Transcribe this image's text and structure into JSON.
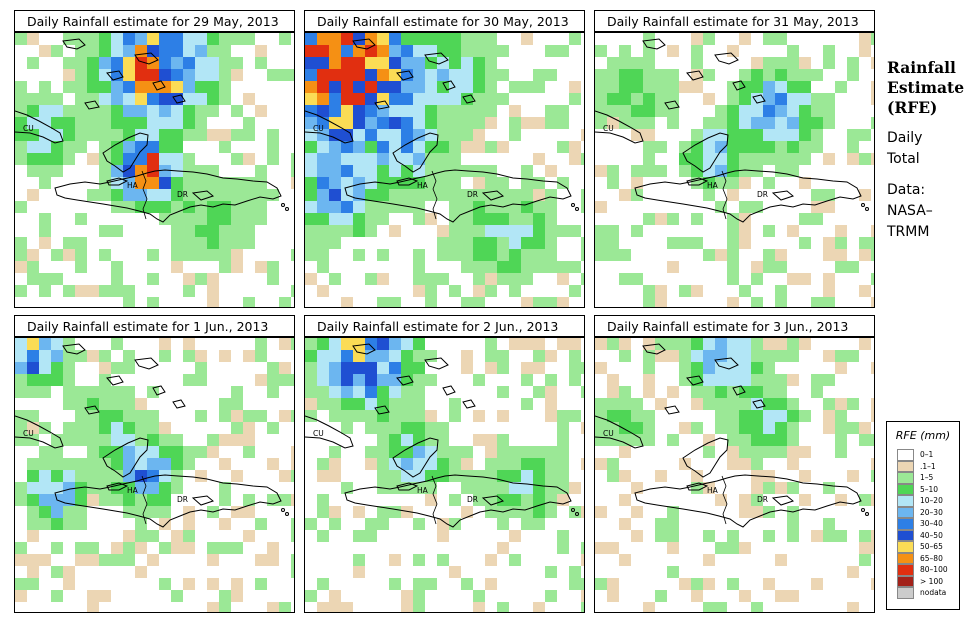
{
  "panels": [
    {
      "id": "p1",
      "title": "Daily Rainfall estimate for  29 May, 2013",
      "labels": {
        "cu": "CU",
        "ha": "HA",
        "dr": "DR"
      }
    },
    {
      "id": "p2",
      "title": "Daily Rainfall estimate for  30 May, 2013",
      "labels": {
        "cu": "CU",
        "ha": "HA",
        "dr": "DR"
      }
    },
    {
      "id": "p3",
      "title": "Daily Rainfall estimate for  31 May, 2013",
      "labels": {
        "cu": "CU",
        "ha": "HA",
        "dr": "DR"
      }
    },
    {
      "id": "p4",
      "title": "Daily Rainfall estimate for  1 Jun., 2013",
      "labels": {
        "cu": "CU",
        "ha": "HA",
        "dr": "DR"
      }
    },
    {
      "id": "p5",
      "title": "Daily Rainfall estimate for  2 Jun., 2013",
      "labels": {
        "cu": "CU",
        "ha": "HA",
        "dr": "DR"
      }
    },
    {
      "id": "p6",
      "title": "Daily Rainfall estimate for  3 Jun., 2013",
      "labels": {
        "cu": "CU",
        "ha": "HA",
        "dr": "DR"
      }
    }
  ],
  "side": {
    "title": [
      "Rainfall",
      "Estimate",
      "(RFE)"
    ],
    "lines1": [
      "Daily",
      "Total"
    ],
    "lines2": [
      "Data:",
      "NASA–",
      "TRMM"
    ]
  },
  "legend": {
    "title": "RFE (mm)",
    "items": [
      {
        "label": "0–1",
        "color": "#ffffff"
      },
      {
        "label": ".1–1",
        "color": "#ecd6b4"
      },
      {
        "label": "1–5",
        "color": "#9be896"
      },
      {
        "label": "5–10",
        "color": "#4fd656"
      },
      {
        "label": "10–20",
        "color": "#b2e6f6"
      },
      {
        "label": "20–30",
        "color": "#6cb6f0"
      },
      {
        "label": "30–40",
        "color": "#2d7fe6"
      },
      {
        "label": "40–50",
        "color": "#1f4fd2"
      },
      {
        "label": "50–65",
        "color": "#fbdc55"
      },
      {
        "label": "65–80",
        "color": "#f59014"
      },
      {
        "label": "80–100",
        "color": "#e12f10"
      },
      {
        "label": "> 100",
        "color": "#a3221a"
      },
      {
        "label": "nodata",
        "color": "#cccccc"
      }
    ]
  }
}
